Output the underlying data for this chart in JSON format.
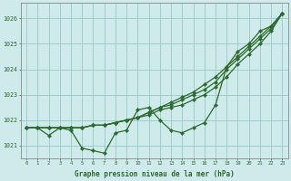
{
  "background_color": "#ceeaea",
  "grid_color": "#9ecece",
  "line_color": "#2d6a2d",
  "title": "Graphe pression niveau de la mer (hPa)",
  "xlim": [
    -0.5,
    23.5
  ],
  "ylim": [
    1020.5,
    1026.6
  ],
  "yticks": [
    1021,
    1022,
    1023,
    1024,
    1025,
    1026
  ],
  "xticks": [
    0,
    1,
    2,
    3,
    4,
    5,
    6,
    7,
    8,
    9,
    10,
    11,
    12,
    13,
    14,
    15,
    16,
    17,
    18,
    19,
    20,
    21,
    22,
    23
  ],
  "series": [
    [
      1021.7,
      1021.7,
      1021.4,
      1021.7,
      1021.6,
      1020.9,
      1020.8,
      1020.7,
      1021.5,
      1021.6,
      1022.4,
      1022.5,
      1022.0,
      1021.6,
      1021.5,
      1021.7,
      1021.9,
      1022.6,
      1024.1,
      1024.7,
      1025.0,
      1025.5,
      1025.7,
      1026.2
    ],
    [
      1021.7,
      1021.7,
      1021.7,
      1021.7,
      1021.7,
      1021.7,
      1021.8,
      1021.8,
      1021.9,
      1022.0,
      1022.1,
      1022.2,
      1022.4,
      1022.5,
      1022.6,
      1022.8,
      1023.0,
      1023.3,
      1023.7,
      1024.2,
      1024.6,
      1025.0,
      1025.5,
      1026.2
    ],
    [
      1021.7,
      1021.7,
      1021.7,
      1021.7,
      1021.7,
      1021.7,
      1021.8,
      1021.8,
      1021.9,
      1022.0,
      1022.1,
      1022.3,
      1022.5,
      1022.6,
      1022.8,
      1023.0,
      1023.2,
      1023.5,
      1024.0,
      1024.4,
      1024.8,
      1025.2,
      1025.6,
      1026.2
    ],
    [
      1021.7,
      1021.7,
      1021.7,
      1021.7,
      1021.7,
      1021.7,
      1021.8,
      1021.8,
      1021.9,
      1022.0,
      1022.1,
      1022.3,
      1022.5,
      1022.7,
      1022.9,
      1023.1,
      1023.4,
      1023.7,
      1024.1,
      1024.5,
      1024.9,
      1025.3,
      1025.7,
      1026.2
    ]
  ]
}
